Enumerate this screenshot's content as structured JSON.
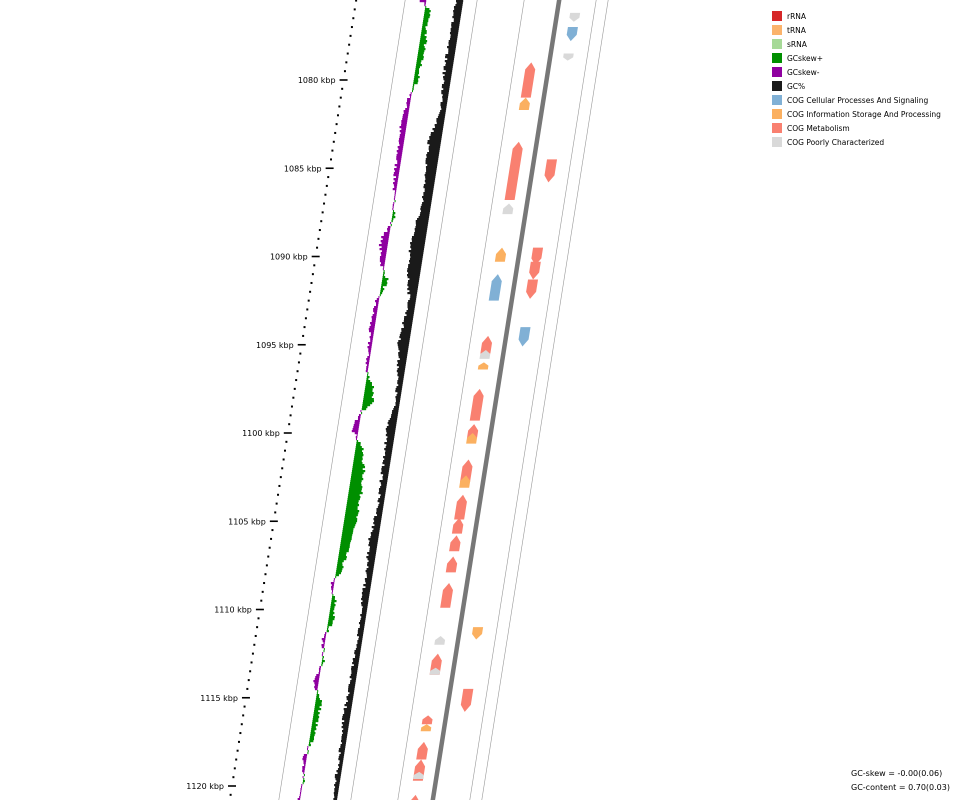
{
  "legend": [
    {
      "label": "rRNA",
      "color": "#d62728"
    },
    {
      "label": "tRNA",
      "color": "#fbb36b"
    },
    {
      "label": "sRNA",
      "color": "#a6d997"
    },
    {
      "label": "GCskew+",
      "color": "#008f00"
    },
    {
      "label": "GCskew-",
      "color": "#8f00a0"
    },
    {
      "label": "GC%",
      "color": "#1a1a1a"
    },
    {
      "label": "COG Cellular Processes And Signaling",
      "color": "#80b0d5"
    },
    {
      "label": "COG Information Storage And Processing",
      "color": "#fbb060"
    },
    {
      "label": "COG Metabolism",
      "color": "#f98070"
    },
    {
      "label": "COG Poorly Characterized",
      "color": "#d9d9d9"
    }
  ],
  "axis": {
    "unit": "kbp",
    "labels": [
      "1080 kbp",
      "1085 kbp",
      "1090 kbp",
      "1095 kbp",
      "1100 kbp",
      "1105 kbp",
      "1110 kbp",
      "1115 kbp",
      "1120 kbp"
    ],
    "start_kbp": 1080,
    "end_kbp": 1120,
    "major_step_kbp": 5
  },
  "stats": {
    "gc_skew": "GC-skew = -0.00(0.06)",
    "gc_content": "GC-content = 0.70(0.03)"
  },
  "features": {
    "reverse_strand": [
      {
        "kbp": 1079.0,
        "len": 2.0,
        "cog": "COG Metabolism"
      },
      {
        "kbp": 1083.5,
        "len": 3.3,
        "cog": "COG Metabolism"
      },
      {
        "kbp": 1081.0,
        "len": 0.7,
        "cog": "COG Information Storage And Processing"
      },
      {
        "kbp": 1087.0,
        "len": 0.6,
        "cog": "COG Poorly Characterized"
      },
      {
        "kbp": 1089.5,
        "len": 0.8,
        "cog": "COG Information Storage And Processing"
      },
      {
        "kbp": 1091.0,
        "len": 1.5,
        "cog": "COG Cellular Processes And Signaling"
      },
      {
        "kbp": 1094.5,
        "len": 1.0,
        "cog": "COG Metabolism"
      },
      {
        "kbp": 1095.3,
        "len": 0.5,
        "cog": "COG Poorly Characterized"
      },
      {
        "kbp": 1096.0,
        "len": 0.4,
        "cog": "COG Information Storage And Processing"
      },
      {
        "kbp": 1097.5,
        "len": 1.8,
        "cog": "COG Metabolism"
      },
      {
        "kbp": 1099.5,
        "len": 0.8,
        "cog": "COG Metabolism"
      },
      {
        "kbp": 1100.0,
        "len": 0.6,
        "cog": "COG Information Storage And Processing"
      },
      {
        "kbp": 1101.5,
        "len": 1.3,
        "cog": "COG Metabolism"
      },
      {
        "kbp": 1102.4,
        "len": 0.7,
        "cog": "COG Information Storage And Processing"
      },
      {
        "kbp": 1103.5,
        "len": 1.4,
        "cog": "COG Metabolism"
      },
      {
        "kbp": 1104.8,
        "len": 0.9,
        "cog": "COG Metabolism"
      },
      {
        "kbp": 1105.8,
        "len": 0.9,
        "cog": "COG Metabolism"
      },
      {
        "kbp": 1107.0,
        "len": 0.9,
        "cog": "COG Metabolism"
      },
      {
        "kbp": 1108.5,
        "len": 1.4,
        "cog": "COG Metabolism"
      },
      {
        "kbp": 1111.5,
        "len": 0.5,
        "cog": "COG Poorly Characterized"
      },
      {
        "kbp": 1112.5,
        "len": 1.2,
        "cog": "COG Metabolism"
      },
      {
        "kbp": 1113.3,
        "len": 0.4,
        "cog": "COG Poorly Characterized"
      },
      {
        "kbp": 1116.0,
        "len": 0.5,
        "cog": "COG Metabolism"
      },
      {
        "kbp": 1116.5,
        "len": 0.4,
        "cog": "COG Information Storage And Processing"
      },
      {
        "kbp": 1117.5,
        "len": 1.0,
        "cog": "COG Metabolism"
      },
      {
        "kbp": 1118.5,
        "len": 1.2,
        "cog": "COG Metabolism"
      },
      {
        "kbp": 1119.2,
        "len": 0.4,
        "cog": "COG Poorly Characterized"
      },
      {
        "kbp": 1120.5,
        "len": 1.2,
        "cog": "COG Metabolism"
      }
    ],
    "forward_strand": [
      {
        "kbp": 1076.2,
        "len": 0.5,
        "cog": "COG Poorly Characterized"
      },
      {
        "kbp": 1077.0,
        "len": 0.8,
        "cog": "COG Cellular Processes And Signaling"
      },
      {
        "kbp": 1078.5,
        "len": 0.4,
        "cog": "COG Poorly Characterized"
      },
      {
        "kbp": 1084.5,
        "len": 1.3,
        "cog": "COG Metabolism"
      },
      {
        "kbp": 1089.5,
        "len": 1.0,
        "cog": "COG Metabolism"
      },
      {
        "kbp": 1090.3,
        "len": 1.0,
        "cog": "COG Metabolism"
      },
      {
        "kbp": 1091.3,
        "len": 1.1,
        "cog": "COG Metabolism"
      },
      {
        "kbp": 1094.0,
        "len": 1.1,
        "cog": "COG Cellular Processes And Signaling"
      },
      {
        "kbp": 1111.0,
        "len": 0.7,
        "cog": "COG Information Storage And Processing"
      },
      {
        "kbp": 1114.5,
        "len": 1.3,
        "cog": "COG Metabolism"
      }
    ]
  }
}
